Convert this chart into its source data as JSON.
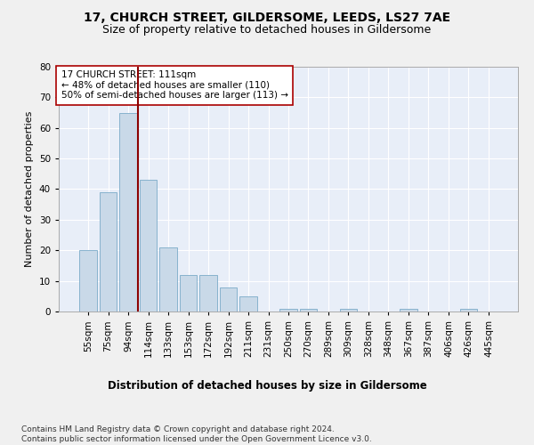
{
  "title1": "17, CHURCH STREET, GILDERSOME, LEEDS, LS27 7AE",
  "title2": "Size of property relative to detached houses in Gildersome",
  "xlabel": "Distribution of detached houses by size in Gildersome",
  "ylabel": "Number of detached properties",
  "categories": [
    "55sqm",
    "75sqm",
    "94sqm",
    "114sqm",
    "133sqm",
    "153sqm",
    "172sqm",
    "192sqm",
    "211sqm",
    "231sqm",
    "250sqm",
    "270sqm",
    "289sqm",
    "309sqm",
    "328sqm",
    "348sqm",
    "367sqm",
    "387sqm",
    "406sqm",
    "426sqm",
    "445sqm"
  ],
  "values": [
    20,
    39,
    65,
    43,
    21,
    12,
    12,
    8,
    5,
    0,
    1,
    1,
    0,
    1,
    0,
    0,
    1,
    0,
    0,
    1,
    0
  ],
  "bar_color": "#c9d9e8",
  "bar_edge_color": "#7aaac8",
  "vline_color": "#8b0000",
  "annotation_text": "17 CHURCH STREET: 111sqm\n← 48% of detached houses are smaller (110)\n50% of semi-detached houses are larger (113) →",
  "annotation_box_color": "#ffffff",
  "annotation_box_edge": "#aa0000",
  "ylim": [
    0,
    80
  ],
  "yticks": [
    0,
    10,
    20,
    30,
    40,
    50,
    60,
    70,
    80
  ],
  "background_color": "#e8eef8",
  "footer_text": "Contains HM Land Registry data © Crown copyright and database right 2024.\nContains public sector information licensed under the Open Government Licence v3.0.",
  "grid_color": "#ffffff",
  "title1_fontsize": 10,
  "title2_fontsize": 9,
  "xlabel_fontsize": 8.5,
  "ylabel_fontsize": 8,
  "tick_fontsize": 7.5,
  "footer_fontsize": 6.5,
  "annotation_fontsize": 7.5
}
